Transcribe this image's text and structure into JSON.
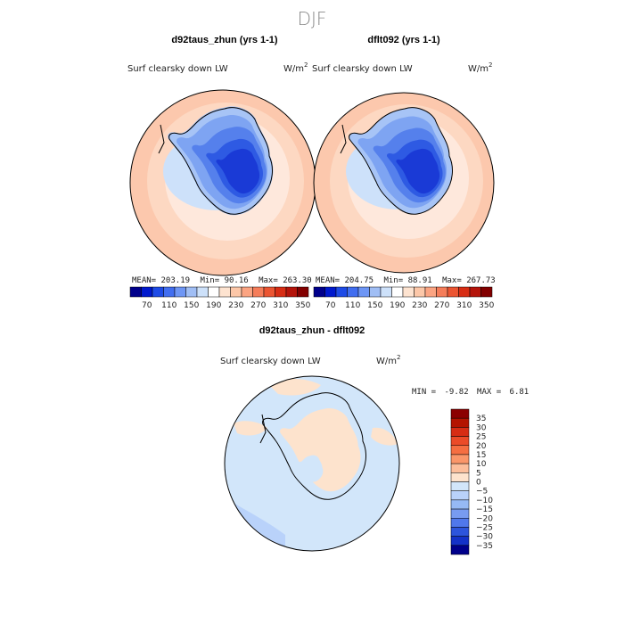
{
  "figure_title": "DJF",
  "chart_data": [
    {
      "type": "heatmap",
      "projection": "south-polar-stereographic",
      "title": "d92taus_zhun (yrs 1-1)",
      "field_label": "Surf clearsky down LW",
      "units_base": "W/m",
      "units_exp": "2",
      "stats": {
        "mean_label": "MEAN=",
        "mean": "203.19",
        "min_label": "Min=",
        "min": "90.16",
        "max_label": "Max=",
        "max": "263.30"
      },
      "colorbar_ticks": [
        "70",
        "110",
        "150",
        "190",
        "230",
        "270",
        "310",
        "350"
      ],
      "colorbar_colors": [
        "#00008b",
        "#0019cd",
        "#1e4be6",
        "#416ef0",
        "#6e96f5",
        "#a0bef5",
        "#cde1fa",
        "#ffffff",
        "#fde3d0",
        "#fcc7a8",
        "#fba482",
        "#f57d5a",
        "#eb5532",
        "#d72d14",
        "#b4140a",
        "#820000"
      ],
      "colorbar_orientation": "horizontal"
    },
    {
      "type": "heatmap",
      "projection": "south-polar-stereographic",
      "title": "dflt092 (yrs 1-1)",
      "field_label": "Surf clearsky down LW",
      "units_base": "W/m",
      "units_exp": "2",
      "stats": {
        "mean_label": "MEAN=",
        "mean": "204.75",
        "min_label": "Min=",
        "min": "88.91",
        "max_label": "Max=",
        "max": "267.73"
      },
      "colorbar_ticks": [
        "70",
        "110",
        "150",
        "190",
        "230",
        "270",
        "310",
        "350"
      ],
      "colorbar_colors": [
        "#00008b",
        "#0019cd",
        "#1e4be6",
        "#416ef0",
        "#6e96f5",
        "#a0bef5",
        "#cde1fa",
        "#ffffff",
        "#fde3d0",
        "#fcc7a8",
        "#fba482",
        "#f57d5a",
        "#eb5532",
        "#d72d14",
        "#b4140a",
        "#820000"
      ],
      "colorbar_orientation": "horizontal"
    },
    {
      "type": "heatmap",
      "projection": "south-polar-stereographic",
      "title": "d92taus_zhun - dflt092",
      "field_label": "Surf clearsky down LW",
      "units_base": "W/m",
      "units_exp": "2",
      "stats": {
        "min_label": "MIN =",
        "min": "-9.82",
        "max_label": "MAX =",
        "max": "6.81"
      },
      "colorbar_ticks": [
        "35",
        "30",
        "25",
        "20",
        "15",
        "10",
        "5",
        "0",
        "−5",
        "−10",
        "−15",
        "−20",
        "−25",
        "−30",
        "−35"
      ],
      "colorbar_colors": [
        "#8b0000",
        "#b41400",
        "#d72d14",
        "#eb4b28",
        "#f56e41",
        "#fa9669",
        "#fcbe9b",
        "#fde3cd",
        "#d2e6fa",
        "#b9d2fa",
        "#96b9f5",
        "#789bf0",
        "#5078eb",
        "#2d55dc",
        "#1432c8",
        "#00008b"
      ],
      "colorbar_orientation": "vertical"
    }
  ]
}
